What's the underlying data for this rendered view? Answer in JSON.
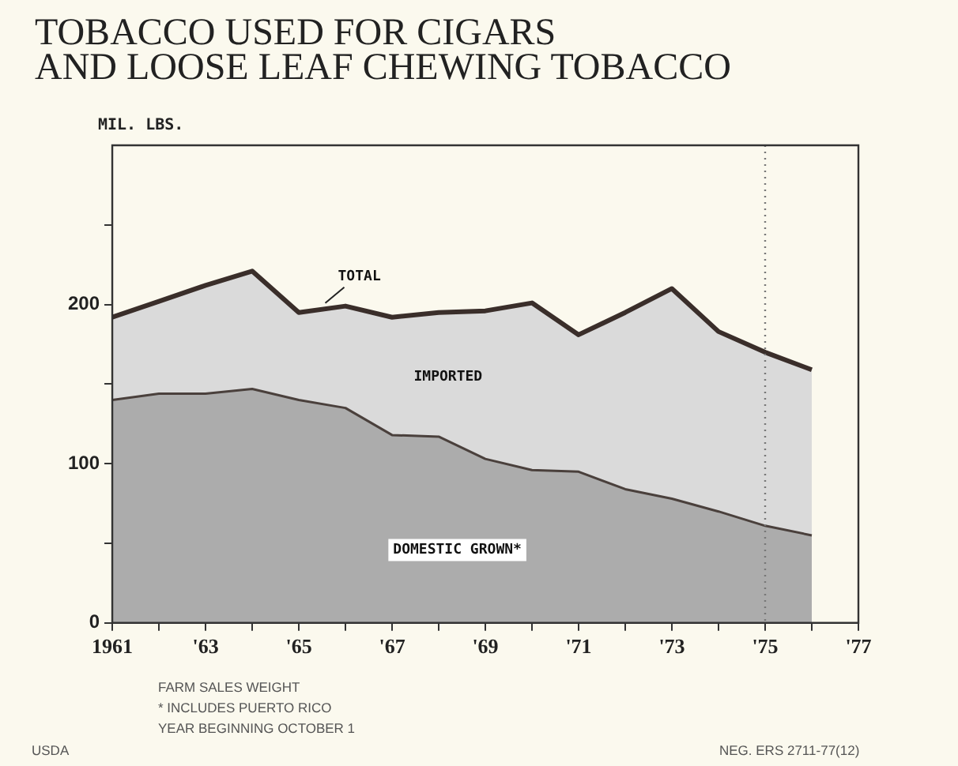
{
  "chart_data": {
    "type": "area",
    "stacked": true,
    "title": "TOBACCO USED FOR CIGARS\nAND LOOSE LEAF CHEWING TOBACCO",
    "ylabel": "MIL. LBS.",
    "x": [
      1961,
      1962,
      1963,
      1964,
      1965,
      1966,
      1967,
      1968,
      1969,
      1970,
      1971,
      1972,
      1973,
      1974,
      1975,
      1976
    ],
    "series": [
      {
        "name": "DOMESTIC GROWN*",
        "color": "#acacac",
        "values": [
          140,
          144,
          144,
          147,
          140,
          135,
          118,
          117,
          103,
          96,
          95,
          84,
          78,
          70,
          61,
          55
        ]
      },
      {
        "name": "IMPORTED",
        "color": "#dadada",
        "values": [
          52,
          58,
          68,
          74,
          55,
          64,
          74,
          78,
          93,
          105,
          86,
          111,
          132,
          113,
          109,
          104
        ]
      }
    ],
    "xlim": [
      1961,
      1977
    ],
    "xticks": [
      1961,
      {
        "value": 1962,
        "label": null
      },
      {
        "value": 1963,
        "label": "'63"
      },
      {
        "value": 1964,
        "label": null
      },
      {
        "value": 1965,
        "label": "'65"
      },
      {
        "value": 1966,
        "label": null
      },
      {
        "value": 1967,
        "label": "'67"
      },
      {
        "value": 1968,
        "label": null
      },
      {
        "value": 1969,
        "label": "'69"
      },
      {
        "value": 1970,
        "label": null
      },
      {
        "value": 1971,
        "label": "'71"
      },
      {
        "value": 1972,
        "label": null
      },
      {
        "value": 1973,
        "label": "'73"
      },
      {
        "value": 1974,
        "label": null
      },
      {
        "value": 1975,
        "label": "'75"
      },
      {
        "value": 1976,
        "label": null
      },
      {
        "value": 1977,
        "label": "'77"
      }
    ],
    "ylim": [
      0,
      300
    ],
    "yticks": [
      0,
      {
        "value": 50,
        "label": null
      },
      100,
      {
        "value": 150,
        "label": null
      },
      200,
      {
        "value": 250,
        "label": null
      }
    ],
    "ref_lines": [
      {
        "axis": "x",
        "value": 1975,
        "line_style": "dotted"
      }
    ],
    "annotations": [
      {
        "text": "TOTAL",
        "x": 1965.5,
        "y": 197
      },
      "FARM SALES WEIGHT",
      "* INCLUDES PUERTO RICO",
      "YEAR BEGINNING OCTOBER 1",
      "USDA",
      "NEG. ERS 2711-77(12)"
    ]
  }
}
